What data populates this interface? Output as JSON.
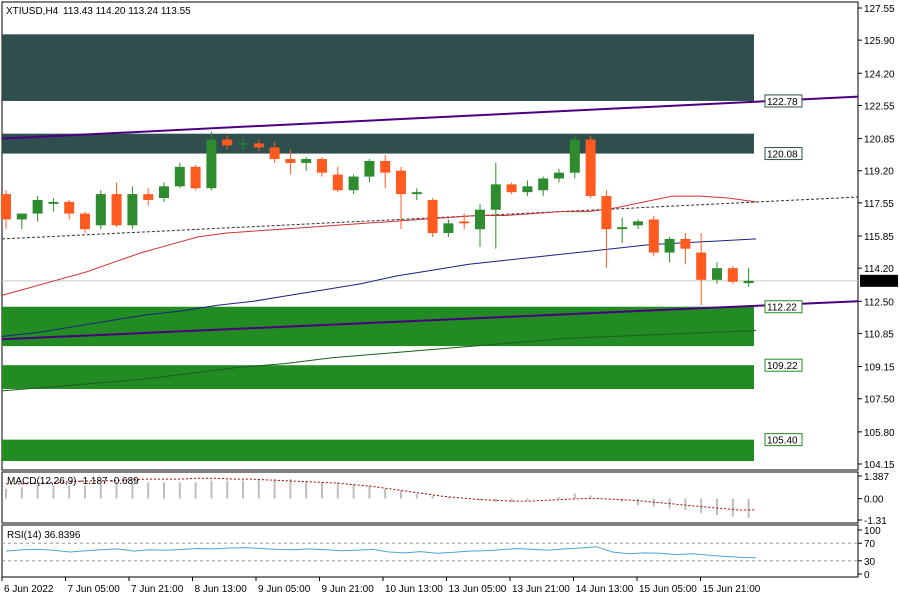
{
  "header": {
    "symbol_tf": "XTIUSD,H4",
    "ohlc": "113.43 114.20 113.24 113.55"
  },
  "colors": {
    "bull": "#2e8b2e",
    "bear": "#ff5a1f",
    "supply_zone": "#2f4f4f",
    "demand_zone": "#228b22",
    "channel": "#4b0082",
    "ma_red": "#cc3333",
    "ma_blue": "#1a237e",
    "ma_green": "#1b5e20",
    "midline": "#333333",
    "macd_line": "#aa0000",
    "rsi_line": "#4fa3d6",
    "price_line": "#c8c8c8"
  },
  "price_axis": {
    "ticks": [
      "127.55",
      "125.90",
      "124.20",
      "122.55",
      "120.85",
      "119.20",
      "117.55",
      "115.85",
      "114.20",
      "112.50",
      "110.85",
      "109.15",
      "107.50",
      "105.80",
      "104.15"
    ],
    "current_price": "113.55"
  },
  "time_axis": {
    "labels": [
      "6 Jun 2022",
      "7 Jun 05:00",
      "7 Jun 21:00",
      "8 Jun 13:00",
      "9 Jun 05:00",
      "9 Jun 21:00",
      "10 Jun 13:00",
      "13 Jun 05:00",
      "13 Jun 21:00",
      "14 Jun 13:00",
      "15 Jun 05:00",
      "15 Jun 21:00"
    ]
  },
  "levels": [
    {
      "label": "122.78",
      "type": "supply"
    },
    {
      "label": "120.08",
      "type": "supply"
    },
    {
      "label": "112.22",
      "type": "demand"
    },
    {
      "label": "109.22",
      "type": "demand"
    },
    {
      "label": "105.40",
      "type": "demand"
    }
  ],
  "macd": {
    "label": "MACD(12,26,9) -1.187 -0.689",
    "ticks": [
      "1.387",
      "0.00",
      "-1.31"
    ]
  },
  "rsi": {
    "label": "RSI(14) 36.8396",
    "ticks": [
      "100",
      "70",
      "30",
      "0"
    ]
  },
  "chart_data": {
    "type": "candlestick",
    "ylim": [
      104.15,
      127.55
    ],
    "candles": [
      {
        "o": 118.0,
        "h": 118.2,
        "l": 116.2,
        "c": 116.7
      },
      {
        "o": 116.7,
        "h": 117.0,
        "l": 116.2,
        "c": 117.0
      },
      {
        "o": 117.0,
        "h": 117.9,
        "l": 116.6,
        "c": 117.7
      },
      {
        "o": 117.5,
        "h": 117.8,
        "l": 117.1,
        "c": 117.6
      },
      {
        "o": 117.6,
        "h": 117.7,
        "l": 116.7,
        "c": 117.0
      },
      {
        "o": 117.0,
        "h": 117.1,
        "l": 116.0,
        "c": 116.2
      },
      {
        "o": 116.4,
        "h": 118.2,
        "l": 116.2,
        "c": 118.0
      },
      {
        "o": 118.0,
        "h": 118.6,
        "l": 116.3,
        "c": 116.4
      },
      {
        "o": 116.4,
        "h": 118.4,
        "l": 116.2,
        "c": 118.0
      },
      {
        "o": 118.0,
        "h": 118.3,
        "l": 117.4,
        "c": 117.7
      },
      {
        "o": 117.8,
        "h": 118.6,
        "l": 117.6,
        "c": 118.4
      },
      {
        "o": 118.4,
        "h": 119.6,
        "l": 118.3,
        "c": 119.4
      },
      {
        "o": 119.4,
        "h": 119.5,
        "l": 118.2,
        "c": 118.3
      },
      {
        "o": 118.3,
        "h": 121.2,
        "l": 118.2,
        "c": 120.8
      },
      {
        "o": 120.8,
        "h": 121.0,
        "l": 120.3,
        "c": 120.5
      },
      {
        "o": 120.6,
        "h": 120.9,
        "l": 120.3,
        "c": 120.6
      },
      {
        "o": 120.6,
        "h": 120.8,
        "l": 120.2,
        "c": 120.4
      },
      {
        "o": 120.4,
        "h": 120.7,
        "l": 119.6,
        "c": 119.8
      },
      {
        "o": 119.8,
        "h": 120.3,
        "l": 119.0,
        "c": 119.6
      },
      {
        "o": 119.6,
        "h": 119.9,
        "l": 119.2,
        "c": 119.8
      },
      {
        "o": 119.8,
        "h": 119.9,
        "l": 118.9,
        "c": 119.1
      },
      {
        "o": 119.0,
        "h": 119.4,
        "l": 118.1,
        "c": 118.2
      },
      {
        "o": 118.2,
        "h": 119.0,
        "l": 118.0,
        "c": 118.9
      },
      {
        "o": 118.9,
        "h": 119.8,
        "l": 118.6,
        "c": 119.7
      },
      {
        "o": 119.7,
        "h": 120.0,
        "l": 118.3,
        "c": 119.1
      },
      {
        "o": 119.2,
        "h": 119.4,
        "l": 116.2,
        "c": 118.0
      },
      {
        "o": 118.0,
        "h": 118.3,
        "l": 117.7,
        "c": 118.1
      },
      {
        "o": 117.7,
        "h": 117.8,
        "l": 115.8,
        "c": 116.0
      },
      {
        "o": 116.0,
        "h": 116.7,
        "l": 115.8,
        "c": 116.5
      },
      {
        "o": 116.6,
        "h": 117.0,
        "l": 116.2,
        "c": 116.5
      },
      {
        "o": 116.2,
        "h": 117.5,
        "l": 115.3,
        "c": 117.2
      },
      {
        "o": 117.2,
        "h": 119.6,
        "l": 115.2,
        "c": 118.5
      },
      {
        "o": 118.5,
        "h": 118.6,
        "l": 118.0,
        "c": 118.1
      },
      {
        "o": 118.1,
        "h": 118.7,
        "l": 117.9,
        "c": 118.4
      },
      {
        "o": 118.2,
        "h": 118.9,
        "l": 117.9,
        "c": 118.8
      },
      {
        "o": 118.8,
        "h": 119.3,
        "l": 118.6,
        "c": 119.1
      },
      {
        "o": 119.1,
        "h": 121.0,
        "l": 118.8,
        "c": 120.8
      },
      {
        "o": 120.8,
        "h": 121.0,
        "l": 117.8,
        "c": 117.9
      },
      {
        "o": 117.9,
        "h": 118.2,
        "l": 114.2,
        "c": 116.2
      },
      {
        "o": 116.2,
        "h": 116.8,
        "l": 115.5,
        "c": 116.3
      },
      {
        "o": 116.4,
        "h": 116.7,
        "l": 116.2,
        "c": 116.6
      },
      {
        "o": 116.7,
        "h": 116.9,
        "l": 114.8,
        "c": 115.0
      },
      {
        "o": 115.0,
        "h": 115.8,
        "l": 114.5,
        "c": 115.7
      },
      {
        "o": 115.7,
        "h": 116.0,
        "l": 114.4,
        "c": 115.2
      },
      {
        "o": 115.0,
        "h": 116.0,
        "l": 112.3,
        "c": 113.6
      },
      {
        "o": 113.6,
        "h": 114.5,
        "l": 113.4,
        "c": 114.2
      },
      {
        "o": 114.2,
        "h": 114.3,
        "l": 113.4,
        "c": 113.5
      },
      {
        "o": 113.43,
        "h": 114.2,
        "l": 113.24,
        "c": 113.55
      }
    ],
    "zones": [
      {
        "type": "supply",
        "from": 122.78,
        "to": 126.2
      },
      {
        "type": "supply",
        "from": 120.08,
        "to": 121.1
      },
      {
        "type": "demand",
        "from": 110.2,
        "to": 112.22
      },
      {
        "type": "demand",
        "from": 108.0,
        "to": 109.22
      },
      {
        "type": "demand",
        "from": 104.3,
        "to": 105.4
      }
    ],
    "channel": {
      "upper": [
        [
          0,
          120.85
        ],
        [
          1,
          123.0
        ]
      ],
      "lower": [
        [
          0,
          110.55
        ],
        [
          1,
          112.5
        ]
      ],
      "middle": [
        [
          0,
          115.7
        ],
        [
          1,
          117.85
        ]
      ]
    },
    "ma_red": [
      112.8,
      113.2,
      113.6,
      114.0,
      114.5,
      115.0,
      115.4,
      115.8,
      116.0,
      116.1,
      116.2,
      116.3,
      116.4,
      116.5,
      116.6,
      116.7,
      116.8,
      116.9,
      116.9,
      117.0,
      117.1,
      117.1,
      117.3,
      117.6,
      117.9,
      117.9,
      117.8,
      117.6
    ],
    "ma_blue": [
      110.7,
      110.9,
      111.2,
      111.5,
      111.8,
      112.0,
      112.3,
      112.5,
      112.8,
      113.1,
      113.4,
      113.8,
      114.1,
      114.4,
      114.6,
      114.8,
      115.0,
      115.2,
      115.4,
      115.5,
      115.6,
      115.7
    ],
    "ma_green": [
      107.9,
      108.1,
      108.3,
      108.5,
      108.8,
      109.1,
      109.3,
      109.6,
      109.8,
      110.0,
      110.2,
      110.4,
      110.6,
      110.7,
      110.8,
      110.9,
      111.0
    ],
    "macd_hist": [
      0.6,
      0.7,
      0.8,
      0.8,
      0.8,
      0.8,
      0.9,
      0.9,
      1.0,
      1.0,
      1.0,
      1.0,
      1.0,
      1.1,
      1.1,
      1.1,
      1.2,
      1.2,
      1.2,
      1.1,
      1.0,
      1.0,
      0.9,
      0.8,
      0.6,
      0.5,
      0.3,
      0.2,
      0.1,
      0.0,
      -0.1,
      -0.2,
      -0.2,
      -0.1,
      0.0,
      0.1,
      0.3,
      0.2,
      0.0,
      -0.2,
      -0.4,
      -0.5,
      -0.6,
      -0.7,
      -0.9,
      -1.0,
      -1.1,
      -1.187
    ],
    "macd_signal": [
      0.9,
      0.9,
      0.95,
      1.0,
      1.05,
      1.1,
      1.1,
      1.15,
      1.2,
      1.2,
      1.2,
      1.25,
      1.25,
      1.2,
      1.2,
      1.15,
      1.1,
      1.05,
      1.0,
      0.95,
      0.85,
      0.75,
      0.6,
      0.45,
      0.3,
      0.15,
      0.05,
      -0.05,
      -0.1,
      -0.15,
      -0.15,
      -0.1,
      -0.05,
      0.0,
      0.0,
      -0.05,
      -0.1,
      -0.2,
      -0.3,
      -0.4,
      -0.5,
      -0.6,
      -0.7,
      -0.689
    ],
    "rsi_values": [
      52,
      55,
      56,
      54,
      50,
      53,
      55,
      57,
      52,
      55,
      54,
      56,
      58,
      57,
      59,
      60,
      58,
      56,
      55,
      57,
      55,
      53,
      54,
      56,
      50,
      48,
      51,
      47,
      49,
      52,
      53,
      55,
      58,
      56,
      54,
      57,
      59,
      62,
      50,
      46,
      48,
      47,
      44,
      46,
      43,
      40,
      38,
      36.8
    ]
  }
}
